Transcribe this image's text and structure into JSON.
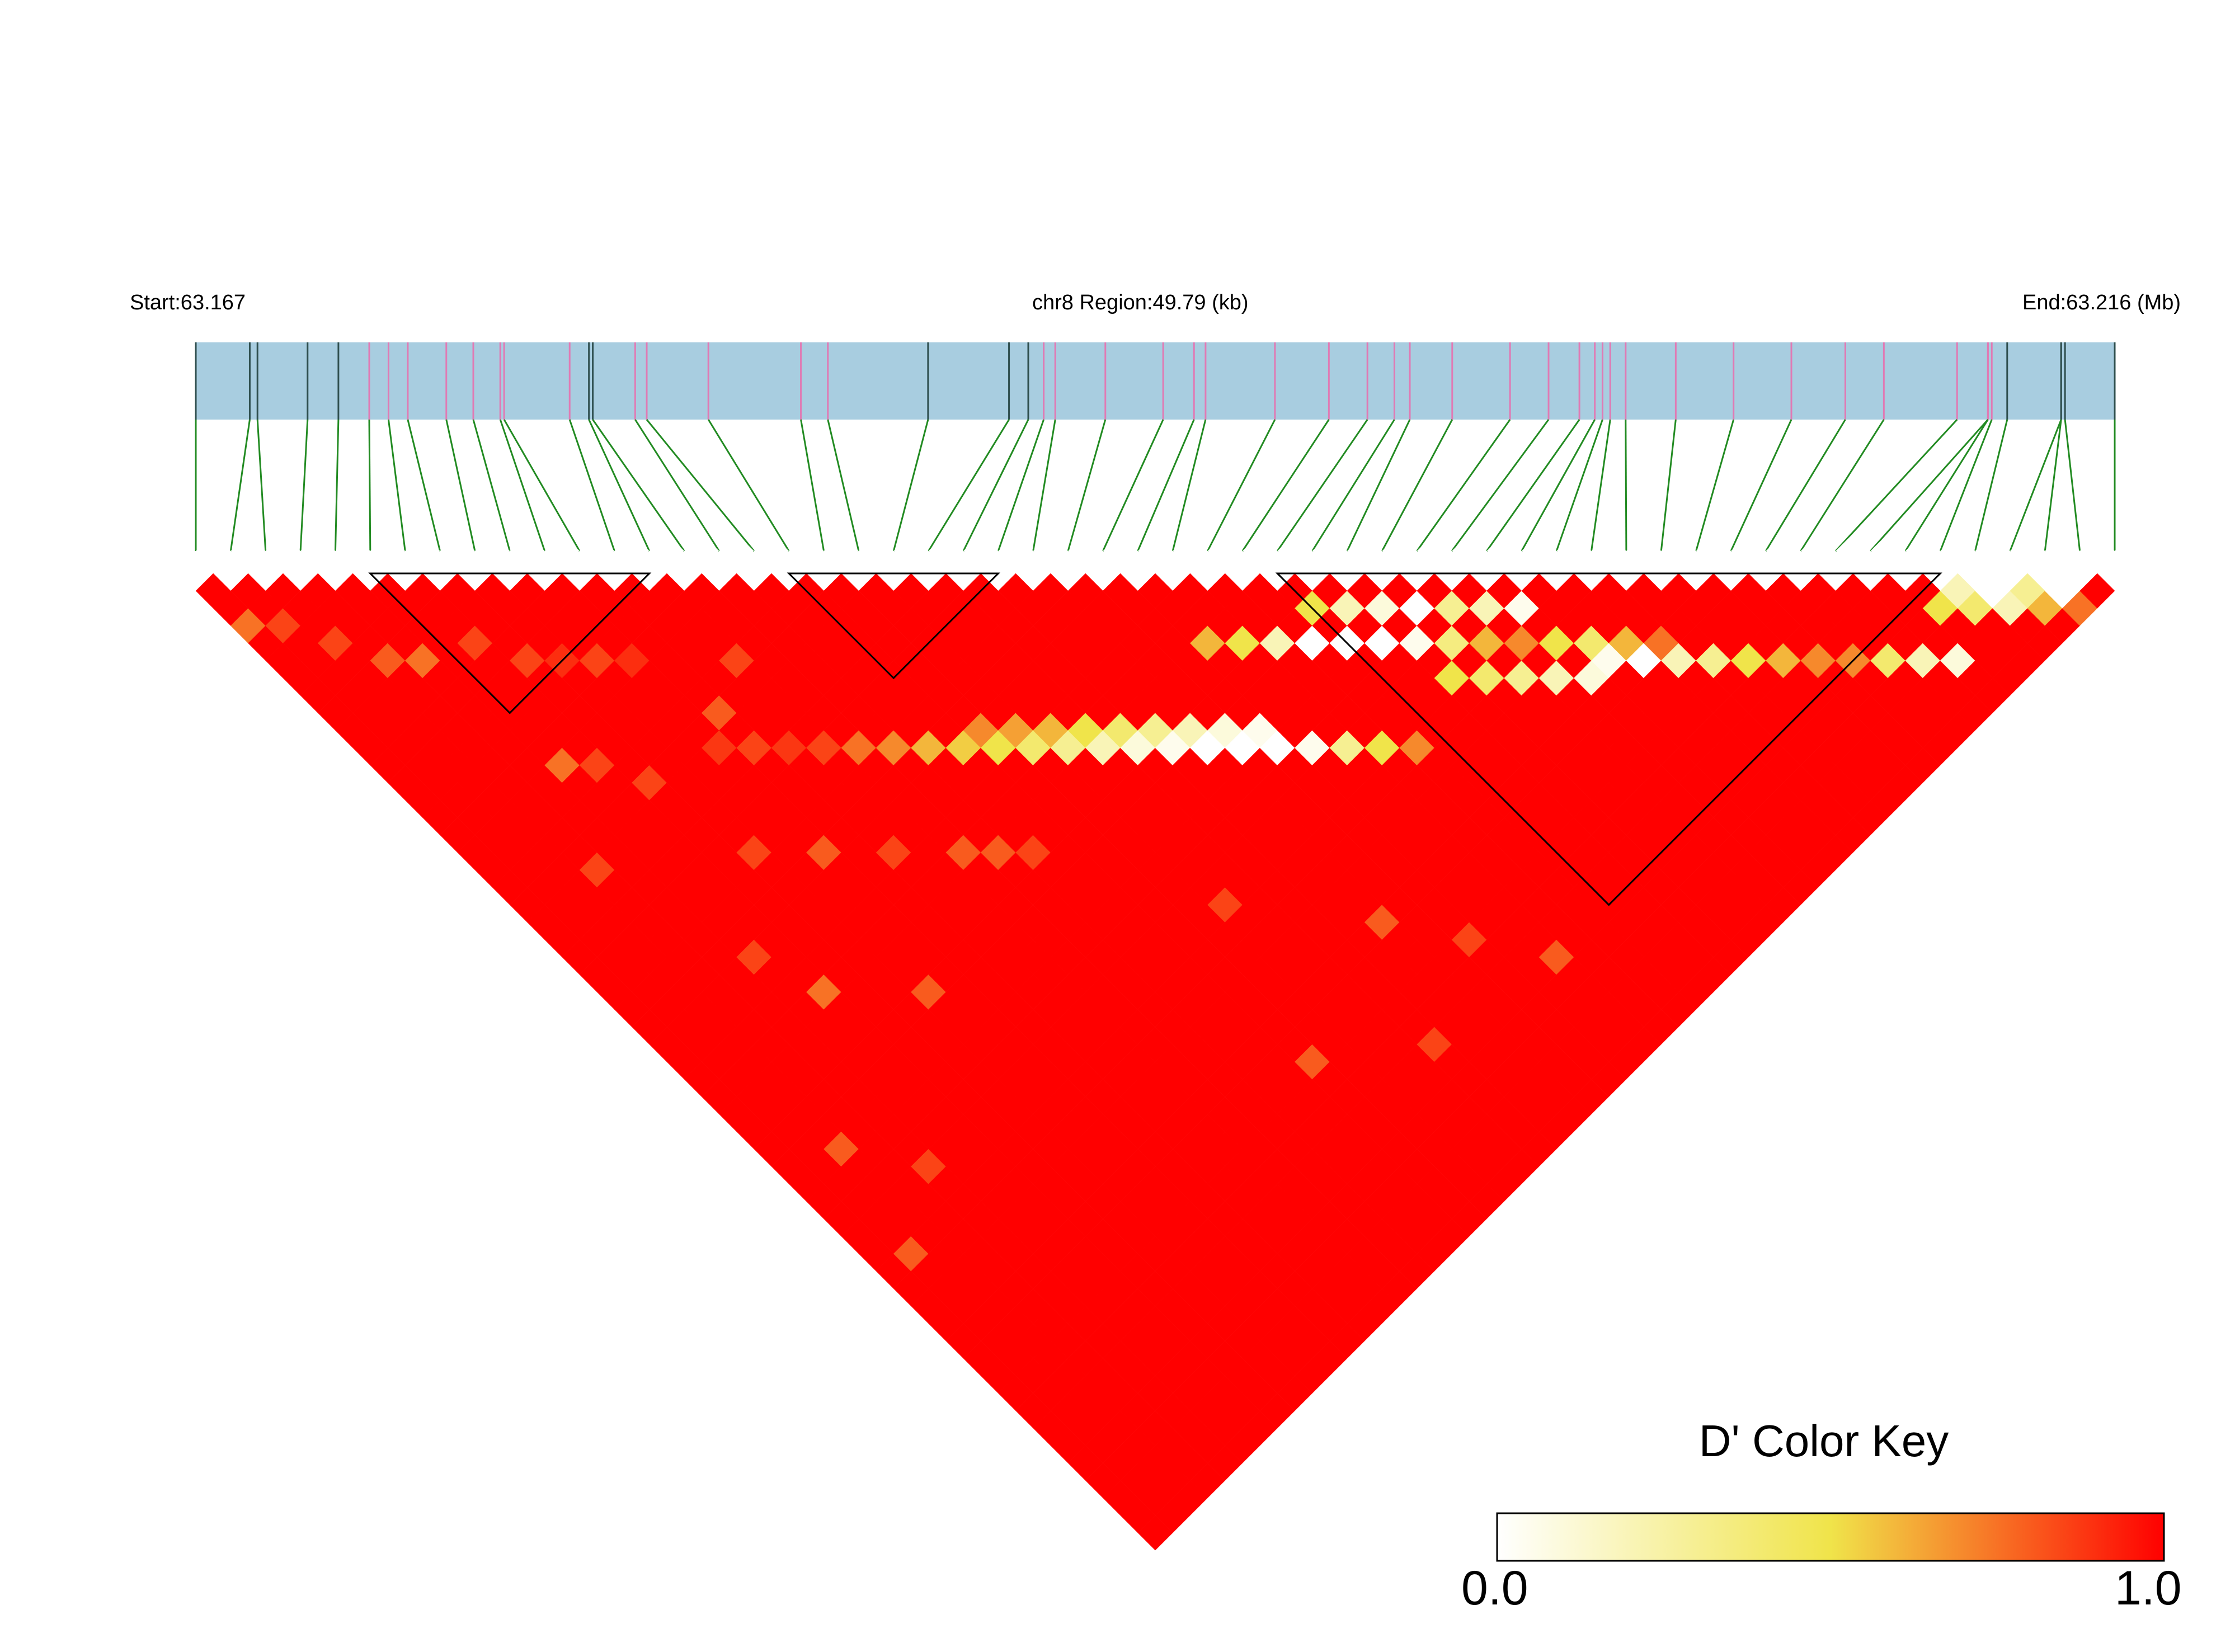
{
  "chart_data": {
    "type": "heatmap",
    "title": "",
    "chromosome": "chr8",
    "start_label": "Start:63.167",
    "region_label": "chr8 Region:49.79 (kb)",
    "end_label": "End:63.216 (Mb)",
    "start_mb": 63.167,
    "end_mb": 63.216,
    "region_kb": 49.79,
    "snp_count": 56,
    "snp_positions_kb": [
      0.0,
      1.4,
      1.6,
      2.9,
      3.7,
      4.5,
      5.0,
      5.5,
      6.5,
      7.2,
      7.9,
      8.0,
      9.7,
      10.2,
      10.3,
      11.4,
      11.7,
      13.3,
      15.7,
      16.4,
      19.0,
      21.1,
      21.6,
      22.0,
      22.3,
      23.6,
      25.1,
      25.9,
      26.2,
      28.0,
      29.4,
      30.4,
      31.1,
      31.5,
      32.6,
      34.1,
      35.1,
      35.9,
      36.3,
      36.5,
      36.7,
      37.1,
      38.4,
      39.9,
      41.4,
      42.8,
      43.8,
      45.7,
      46.5,
      46.5,
      46.6,
      47.0,
      48.4,
      48.4,
      48.5,
      49.79
    ],
    "marker_colors": {
      "dark": "#2f4f4f",
      "pink": "#e07ab4"
    },
    "snp_marker_kind": [
      "dark",
      "dark",
      "dark",
      "dark",
      "dark",
      "pink",
      "pink",
      "pink",
      "pink",
      "pink",
      "pink",
      "pink",
      "pink",
      "dark",
      "dark",
      "pink",
      "pink",
      "pink",
      "pink",
      "pink",
      "dark",
      "dark",
      "dark",
      "pink",
      "pink",
      "pink",
      "pink",
      "pink",
      "pink",
      "pink",
      "pink",
      "pink",
      "pink",
      "pink",
      "pink",
      "pink",
      "pink",
      "pink",
      "pink",
      "pink",
      "pink",
      "pink",
      "pink",
      "pink",
      "pink",
      "pink",
      "pink",
      "pink",
      "pink",
      "pink",
      "pink",
      "dark",
      "dark",
      "dark",
      "dark",
      "dark"
    ],
    "ld_blocks": [
      [
        5,
        13
      ],
      [
        17,
        23
      ],
      [
        31,
        50
      ]
    ],
    "ld_block_colors": {
      "outline": "#000000",
      "fill": "#ff0000"
    },
    "default_dprime": 1.0,
    "dprime_exceptions": [
      [
        0,
        3,
        0.75
      ],
      [
        1,
        4,
        0.85
      ],
      [
        2,
        6,
        0.85
      ],
      [
        3,
        8,
        0.8
      ],
      [
        4,
        9,
        0.75
      ],
      [
        6,
        10,
        0.85
      ],
      [
        7,
        12,
        0.85
      ],
      [
        8,
        13,
        0.9
      ],
      [
        9,
        14,
        0.85
      ],
      [
        10,
        15,
        0.9
      ],
      [
        5,
        16,
        0.75
      ],
      [
        6,
        17,
        0.85
      ],
      [
        10,
        20,
        0.88
      ],
      [
        11,
        21,
        0.85
      ],
      [
        12,
        22,
        0.88
      ],
      [
        13,
        23,
        0.85
      ],
      [
        14,
        24,
        0.75
      ],
      [
        15,
        25,
        0.7
      ],
      [
        16,
        26,
        0.6
      ],
      [
        17,
        27,
        0.55
      ],
      [
        18,
        28,
        0.5
      ],
      [
        19,
        29,
        0.4
      ],
      [
        20,
        30,
        0.3
      ],
      [
        21,
        31,
        0.2
      ],
      [
        22,
        32,
        0.1
      ],
      [
        23,
        33,
        0.05
      ],
      [
        24,
        34,
        0.0
      ],
      [
        25,
        35,
        0.0
      ],
      [
        26,
        36,
        0.0
      ],
      [
        27,
        37,
        0.05
      ],
      [
        28,
        38,
        0.3
      ],
      [
        29,
        39,
        0.5
      ],
      [
        30,
        40,
        0.7
      ],
      [
        20,
        29,
        0.6
      ],
      [
        21,
        30,
        0.5
      ],
      [
        22,
        31,
        0.4
      ],
      [
        23,
        32,
        0.3
      ],
      [
        19,
        28,
        0.65
      ],
      [
        18,
        27,
        0.7
      ],
      [
        24,
        33,
        0.2
      ],
      [
        25,
        34,
        0.1
      ],
      [
        26,
        35,
        0.05
      ],
      [
        28,
        32,
        0.5
      ],
      [
        29,
        33,
        0.2
      ],
      [
        30,
        34,
        0.0
      ],
      [
        27,
        31,
        0.6
      ],
      [
        31,
        35,
        0.0
      ],
      [
        32,
        36,
        0.0
      ],
      [
        33,
        37,
        0.05
      ],
      [
        34,
        38,
        0.35
      ],
      [
        35,
        39,
        0.6
      ],
      [
        36,
        40,
        0.7
      ],
      [
        37,
        41,
        0.5
      ],
      [
        38,
        42,
        0.4
      ],
      [
        39,
        43,
        0.6
      ],
      [
        40,
        44,
        0.75
      ],
      [
        32,
        34,
        0.2
      ],
      [
        33,
        35,
        0.1
      ],
      [
        34,
        36,
        0.0
      ],
      [
        31,
        33,
        0.5
      ],
      [
        35,
        37,
        0.3
      ],
      [
        36,
        38,
        0.2
      ],
      [
        37,
        39,
        0.05
      ],
      [
        49,
        51,
        0.5
      ],
      [
        50,
        52,
        0.4
      ],
      [
        51,
        53,
        0.2
      ],
      [
        52,
        54,
        0.6
      ],
      [
        50,
        51,
        0.2
      ],
      [
        51,
        52,
        0.0
      ],
      [
        52,
        53,
        0.3
      ],
      [
        53,
        54,
        0.0
      ],
      [
        53,
        55,
        0.75
      ],
      [
        45,
        50,
        0.7
      ],
      [
        46,
        51,
        0.4
      ],
      [
        47,
        52,
        0.2
      ],
      [
        48,
        53,
        0.1
      ],
      [
        44,
        49,
        0.7
      ],
      [
        43,
        48,
        0.6
      ],
      [
        42,
        47,
        0.5
      ],
      [
        41,
        46,
        0.3
      ],
      [
        40,
        45,
        0.2
      ],
      [
        39,
        44,
        0.0
      ],
      [
        38,
        43,
        0.05
      ],
      [
        35,
        41,
        0.3
      ],
      [
        36,
        42,
        0.2
      ],
      [
        37,
        43,
        0.1
      ],
      [
        34,
        40,
        0.4
      ],
      [
        33,
        39,
        0.5
      ],
      [
        8,
        24,
        0.85
      ],
      [
        10,
        26,
        0.8
      ],
      [
        12,
        28,
        0.85
      ],
      [
        14,
        30,
        0.8
      ],
      [
        16,
        32,
        0.85
      ],
      [
        5,
        27,
        0.85
      ],
      [
        6,
        30,
        0.75
      ],
      [
        9,
        33,
        0.8
      ],
      [
        3,
        20,
        0.85
      ],
      [
        2,
        35,
        0.8
      ],
      [
        4,
        38,
        0.85
      ],
      [
        1,
        40,
        0.8
      ],
      [
        7,
        19,
        0.85
      ],
      [
        11,
        19,
        0.8
      ],
      [
        13,
        18,
        0.85
      ],
      [
        15,
        31,
        0.8
      ],
      [
        20,
        39,
        0.85
      ],
      [
        24,
        44,
        0.8
      ],
      [
        26,
        47,
        0.85
      ],
      [
        18,
        46,
        0.8
      ],
      [
        22,
        49,
        0.85
      ],
      [
        28,
        50,
        0.8
      ]
    ],
    "color_key": {
      "title": "D' Color Key",
      "min_label": "0.0",
      "max_label": "1.0",
      "min": 0.0,
      "max": 1.0,
      "stops": [
        "#ffffff",
        "#f0e44a",
        "#ff0000"
      ]
    },
    "track_color": "#a8cde0",
    "connector_color": "#228b22"
  }
}
